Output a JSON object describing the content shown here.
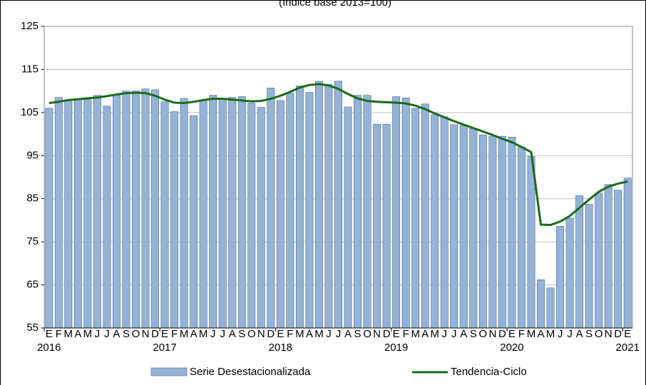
{
  "chart_data": {
    "type": "bar_line",
    "subtitle": "(Índice base 2013=100)",
    "categories": [
      "E",
      "F",
      "M",
      "A",
      "M",
      "J",
      "J",
      "A",
      "S",
      "O",
      "N",
      "D",
      "E",
      "F",
      "M",
      "A",
      "M",
      "J",
      "J",
      "A",
      "S",
      "O",
      "N",
      "D",
      "E",
      "F",
      "M",
      "A",
      "M",
      "J",
      "J",
      "A",
      "S",
      "O",
      "N",
      "D",
      "E",
      "F",
      "M",
      "A",
      "M",
      "J",
      "J",
      "A",
      "S",
      "O",
      "N",
      "D",
      "E",
      "F",
      "M",
      "A",
      "M",
      "J",
      "J",
      "A",
      "S",
      "O",
      "N",
      "D",
      "E"
    ],
    "years": [
      "2016",
      null,
      null,
      null,
      null,
      null,
      null,
      null,
      null,
      null,
      null,
      null,
      "2017",
      null,
      null,
      null,
      null,
      null,
      null,
      null,
      null,
      null,
      null,
      null,
      "2018",
      null,
      null,
      null,
      null,
      null,
      null,
      null,
      null,
      null,
      null,
      null,
      "2019",
      null,
      null,
      null,
      null,
      null,
      null,
      null,
      null,
      null,
      null,
      null,
      "2020",
      null,
      null,
      null,
      null,
      null,
      null,
      null,
      null,
      null,
      null,
      null,
      "2021"
    ],
    "series": [
      {
        "name": "Serie Desestacionalizada",
        "kind": "bar",
        "color": "#95b3d7",
        "values": [
          106,
          108.5,
          108,
          108,
          108,
          109,
          106.5,
          109,
          110,
          110,
          110.5,
          110.3,
          107.5,
          105.2,
          108.3,
          104.3,
          108,
          109,
          108,
          108.5,
          108.7,
          107.2,
          106.2,
          110.7,
          107.8,
          109.5,
          111.2,
          109.7,
          112.2,
          111.5,
          112.3,
          106.3,
          109,
          109,
          102.3,
          102.3,
          108.7,
          108.4,
          106,
          107,
          104.5,
          104,
          102.2,
          102,
          101.3,
          99.8,
          99.5,
          99.5,
          99.3,
          97,
          94.8,
          66.2,
          64.3,
          78.6,
          80.5,
          85.7,
          83.7,
          86.3,
          88.3,
          87,
          89.8
        ]
      },
      {
        "name": "Tendencia-Ciclo",
        "kind": "line",
        "color": "#1a6b1a",
        "values": [
          107.2,
          107.5,
          107.9,
          108.1,
          108.3,
          108.5,
          108.8,
          109.2,
          109.5,
          109.6,
          109.5,
          108.9,
          108,
          107.3,
          107.2,
          107.5,
          107.9,
          108.2,
          108.2,
          108,
          107.8,
          107.6,
          107.7,
          108.2,
          108.9,
          109.8,
          110.8,
          111.4,
          111.6,
          111.3,
          110.5,
          109.3,
          108.3,
          107.7,
          107.5,
          107.4,
          107.3,
          107.1,
          106.6,
          105.8,
          104.8,
          103.9,
          103,
          102.2,
          101.4,
          100.6,
          99.8,
          98.9,
          98.1,
          97,
          95.8,
          79,
          78.9,
          79.7,
          81,
          82.9,
          84.8,
          86.6,
          87.8,
          88.5,
          89
        ]
      }
    ],
    "ylim": [
      55,
      125
    ],
    "yticks": [
      55,
      65,
      75,
      85,
      95,
      105,
      115,
      125
    ],
    "grid": true
  }
}
